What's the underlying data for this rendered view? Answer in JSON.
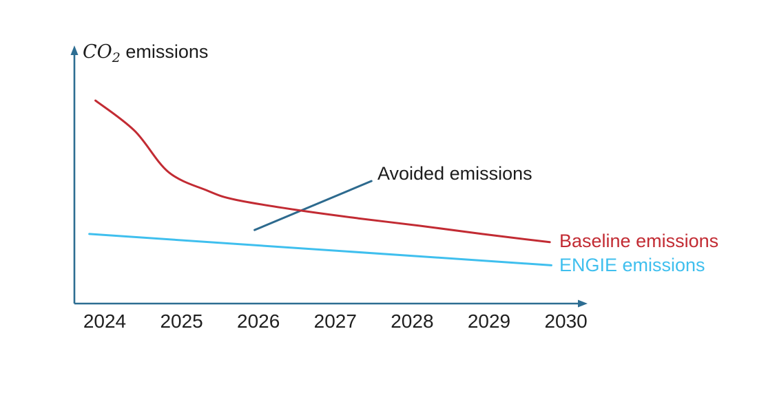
{
  "chart_data": {
    "type": "line",
    "title": "",
    "y_axis_label": {
      "prefix_math": "CO",
      "subscript": "2",
      "suffix": " emissions"
    },
    "categories": [
      "2024",
      "2025",
      "2026",
      "2027",
      "2028",
      "2029",
      "2030"
    ],
    "x_range": [
      2024,
      2030
    ],
    "y_range_relative": [
      0,
      100
    ],
    "grid": false,
    "axis_color": "#2d6d92",
    "text_color": "#1c1c1c",
    "series": [
      {
        "name": "Baseline emissions",
        "color": "#c22b33",
        "style": "smooth",
        "points": [
          [
            2023.88,
            81.7
          ],
          [
            2024.39,
            69.5
          ],
          [
            2024.83,
            52.9
          ],
          [
            2025.34,
            45.4
          ],
          [
            2025.7,
            41.8
          ],
          [
            2026.49,
            37.7
          ],
          [
            2027.3,
            34.3
          ],
          [
            2028.1,
            31.3
          ],
          [
            2028.91,
            28.0
          ],
          [
            2029.79,
            24.7
          ]
        ]
      },
      {
        "name": "ENGIE emissions",
        "color": "#3fbfee",
        "style": "straight",
        "points": [
          [
            2023.8,
            28.0
          ],
          [
            2029.81,
            15.4
          ]
        ]
      }
    ],
    "annotation": {
      "label": "Avoided emissions",
      "line_color": "#2d6a8e",
      "line": [
        [
          2025.95,
          29.6
        ],
        [
          2027.47,
          49.3
        ]
      ]
    },
    "legend": {
      "position": "right-of-line-ends"
    }
  }
}
